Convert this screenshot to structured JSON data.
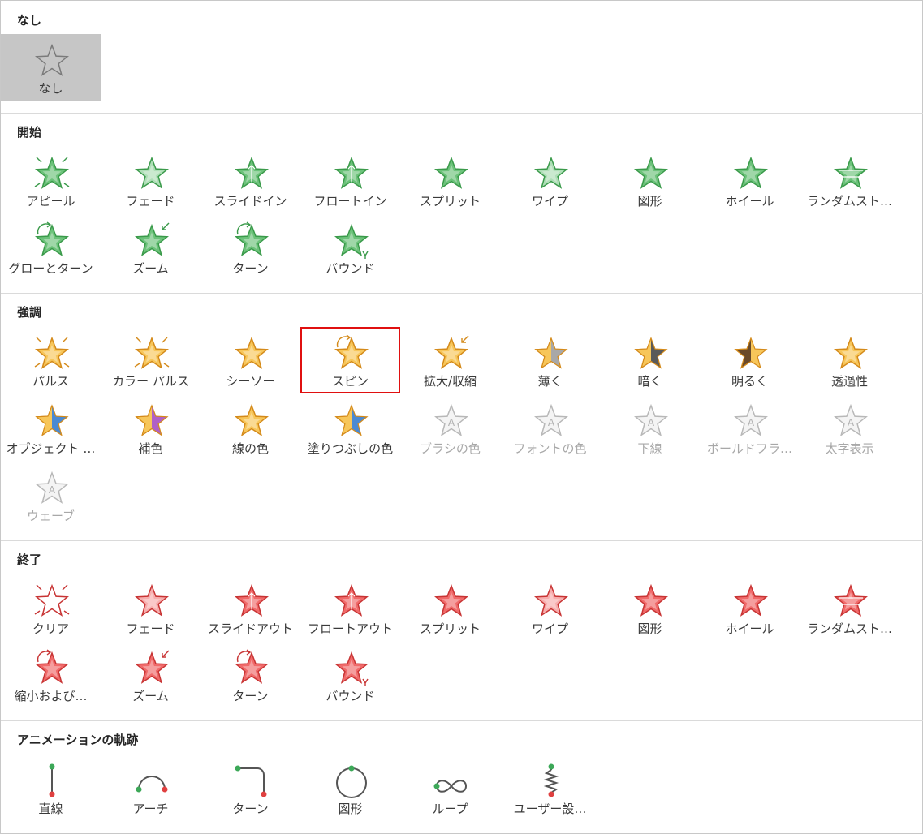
{
  "sections": [
    {
      "title": "なし",
      "items": [
        {
          "label": "なし",
          "icon": "star-none-icon",
          "style": "none",
          "selected": true
        }
      ]
    },
    {
      "title": "開始",
      "items": [
        {
          "label": "アピール",
          "icon": "star-appear-icon",
          "style": "green"
        },
        {
          "label": "フェード",
          "icon": "star-fade-icon",
          "style": "green-fade"
        },
        {
          "label": "スライドイン",
          "icon": "star-fly-in-icon",
          "style": "green"
        },
        {
          "label": "フロートイン",
          "icon": "star-float-in-icon",
          "style": "green"
        },
        {
          "label": "スプリット",
          "icon": "star-split-icon",
          "style": "green"
        },
        {
          "label": "ワイプ",
          "icon": "star-wipe-icon",
          "style": "green-fade"
        },
        {
          "label": "図形",
          "icon": "star-shape-icon",
          "style": "green"
        },
        {
          "label": "ホイール",
          "icon": "star-wheel-icon",
          "style": "green"
        },
        {
          "label": "ランダムスト…",
          "icon": "star-random-bars-icon",
          "style": "green"
        },
        {
          "label": "グローとターン",
          "icon": "star-grow-turn-icon",
          "style": "green"
        },
        {
          "label": "ズーム",
          "icon": "star-zoom-icon",
          "style": "green"
        },
        {
          "label": "ターン",
          "icon": "star-turn-icon",
          "style": "green"
        },
        {
          "label": "バウンド",
          "icon": "star-bounce-icon",
          "style": "green"
        }
      ]
    },
    {
      "title": "強調",
      "items": [
        {
          "label": "パルス",
          "icon": "star-pulse-icon",
          "style": "gold"
        },
        {
          "label": "カラー パルス",
          "icon": "star-color-pulse-icon",
          "style": "gold"
        },
        {
          "label": "シーソー",
          "icon": "star-teeter-icon",
          "style": "gold"
        },
        {
          "label": "スピン",
          "icon": "star-spin-icon",
          "style": "gold",
          "highlight": true
        },
        {
          "label": "拡大/収縮",
          "icon": "star-grow-shrink-icon",
          "style": "gold"
        },
        {
          "label": "薄く",
          "icon": "star-desaturate-icon",
          "style": "gold-gray"
        },
        {
          "label": "暗く",
          "icon": "star-darken-icon",
          "style": "gold-dark"
        },
        {
          "label": "明るく",
          "icon": "star-lighten-icon",
          "style": "gold-brown"
        },
        {
          "label": "透過性",
          "icon": "star-transparency-icon",
          "style": "gold-light"
        },
        {
          "label": "オブジェクト …",
          "icon": "star-object-color-icon",
          "style": "gold-blue"
        },
        {
          "label": "補色",
          "icon": "star-complementary-icon",
          "style": "gold-purple"
        },
        {
          "label": "線の色",
          "icon": "star-line-color-icon",
          "style": "gold"
        },
        {
          "label": "塗りつぶしの色",
          "icon": "star-fill-color-icon",
          "style": "gold-blue"
        },
        {
          "label": "ブラシの色",
          "icon": "star-brush-color-icon",
          "style": "disabled",
          "disabled": true
        },
        {
          "label": "フォントの色",
          "icon": "star-font-color-icon",
          "style": "disabled",
          "disabled": true
        },
        {
          "label": "下線",
          "icon": "star-underline-icon",
          "style": "disabled",
          "disabled": true
        },
        {
          "label": "ボールドフラ…",
          "icon": "star-bold-flash-icon",
          "style": "disabled",
          "disabled": true
        },
        {
          "label": "太字表示",
          "icon": "star-bold-reveal-icon",
          "style": "disabled",
          "disabled": true
        },
        {
          "label": "ウェーブ",
          "icon": "star-wave-icon",
          "style": "disabled",
          "disabled": true
        }
      ]
    },
    {
      "title": "終了",
      "items": [
        {
          "label": "クリア",
          "icon": "star-disappear-icon",
          "style": "red-outline"
        },
        {
          "label": "フェード",
          "icon": "star-fade-icon",
          "style": "red-fade"
        },
        {
          "label": "スライドアウト",
          "icon": "star-fly-out-icon",
          "style": "red"
        },
        {
          "label": "フロートアウト",
          "icon": "star-float-out-icon",
          "style": "red"
        },
        {
          "label": "スプリット",
          "icon": "star-split-icon",
          "style": "red"
        },
        {
          "label": "ワイプ",
          "icon": "star-wipe-icon",
          "style": "red-fade"
        },
        {
          "label": "図形",
          "icon": "star-shape-icon",
          "style": "red"
        },
        {
          "label": "ホイール",
          "icon": "star-wheel-icon",
          "style": "red"
        },
        {
          "label": "ランダムスト…",
          "icon": "star-random-bars-icon",
          "style": "red"
        },
        {
          "label": "縮小および…",
          "icon": "star-shrink-turn-icon",
          "style": "red"
        },
        {
          "label": "ズーム",
          "icon": "star-zoom-icon",
          "style": "red"
        },
        {
          "label": "ターン",
          "icon": "star-turn-icon",
          "style": "red"
        },
        {
          "label": "バウンド",
          "icon": "star-bounce-icon",
          "style": "red"
        }
      ]
    },
    {
      "title": "アニメーションの軌跡",
      "items": [
        {
          "label": "直線",
          "icon": "path-line-icon",
          "style": "path-line"
        },
        {
          "label": "アーチ",
          "icon": "path-arc-icon",
          "style": "path-arc"
        },
        {
          "label": "ターン",
          "icon": "path-turn-icon",
          "style": "path-turn"
        },
        {
          "label": "図形",
          "icon": "path-shape-icon",
          "style": "path-circle"
        },
        {
          "label": "ループ",
          "icon": "path-loop-icon",
          "style": "path-loop"
        },
        {
          "label": "ユーザー設…",
          "icon": "path-custom-icon",
          "style": "path-custom"
        }
      ]
    }
  ],
  "colors": {
    "green_fill": "#6cc27a",
    "green_stroke": "#3a9a4a",
    "gold_fill": "#f7c65a",
    "gold_stroke": "#d48a1a",
    "red_fill": "#f06a6a",
    "red_stroke": "#c83434",
    "disabled_stroke": "#b8b8b8",
    "highlight_border": "#e01010",
    "selected_bg": "#c6c6c6"
  }
}
